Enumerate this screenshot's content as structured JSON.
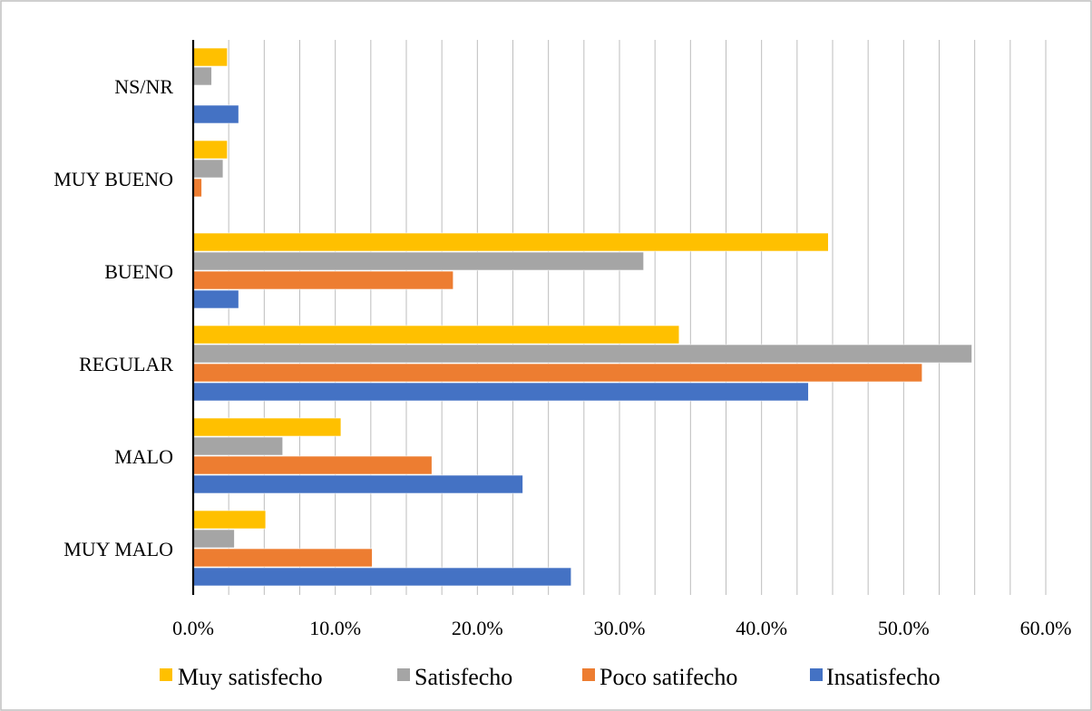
{
  "chart_data": {
    "type": "bar",
    "orientation": "horizontal",
    "categories": [
      "MUY MALO",
      "MALO",
      "REGULAR",
      "BUENO",
      "MUY BUENO",
      "NS/NR"
    ],
    "series": [
      {
        "name": "Muy satisfecho",
        "color": "#FFC000",
        "values": [
          5.1,
          10.4,
          34.2,
          44.7,
          2.4,
          2.4
        ]
      },
      {
        "name": "Satisfecho",
        "color": "#A5A5A5",
        "values": [
          2.9,
          6.3,
          54.8,
          31.7,
          2.1,
          1.3
        ]
      },
      {
        "name": "Poco satifecho",
        "color": "#ED7D31",
        "values": [
          12.6,
          16.8,
          51.3,
          18.3,
          0.6,
          null
        ]
      },
      {
        "name": "Insatisfecho",
        "color": "#4472C4",
        "values": [
          26.6,
          23.2,
          43.3,
          3.2,
          null,
          3.2
        ]
      }
    ],
    "xlim": [
      0,
      60
    ],
    "ticks": [
      "0.0%",
      "10.0%",
      "20.0%",
      "30.0%",
      "40.0%",
      "50.0%",
      "60.0%"
    ],
    "tick_values": [
      0,
      10,
      20,
      30,
      40,
      50,
      60
    ],
    "grid": "vertical minor lines",
    "legend_position": "bottom",
    "title": "",
    "xlabel": "",
    "ylabel": ""
  }
}
